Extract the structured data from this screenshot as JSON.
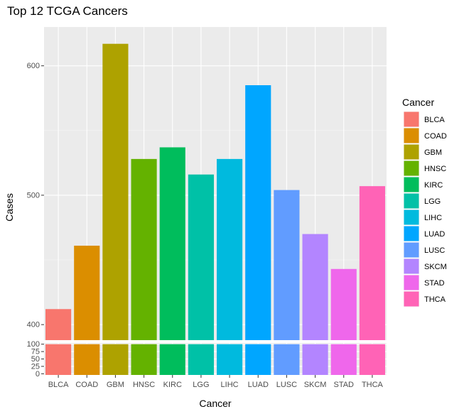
{
  "chart_data": {
    "type": "bar",
    "title": "Top 12 TCGA Cancers",
    "xlabel": "Cancer",
    "ylabel": "Cases",
    "categories": [
      "BLCA",
      "COAD",
      "GBM",
      "HNSC",
      "KIRC",
      "LGG",
      "LIHC",
      "LUAD",
      "LUSC",
      "SKCM",
      "STAD",
      "THCA"
    ],
    "values": [
      412,
      461,
      617,
      528,
      537,
      516,
      528,
      585,
      504,
      470,
      443,
      507
    ],
    "colors": [
      "#F8766D",
      "#DB8E00",
      "#AEA200",
      "#64B200",
      "#00BD5C",
      "#00C1A7",
      "#00BADE",
      "#00A6FF",
      "#619CFF",
      "#B385FF",
      "#EF67EB",
      "#FF63B6"
    ],
    "y_upper_panel": {
      "ylim": [
        388,
        630
      ],
      "ticks": [
        400,
        500,
        600
      ]
    },
    "y_lower_panel": {
      "ylim": [
        -4,
        104
      ],
      "ticks": [
        0,
        25,
        50,
        75,
        100
      ]
    },
    "legend": {
      "title": "Cancer",
      "position": "right"
    },
    "grid": true,
    "axis_break": true
  }
}
